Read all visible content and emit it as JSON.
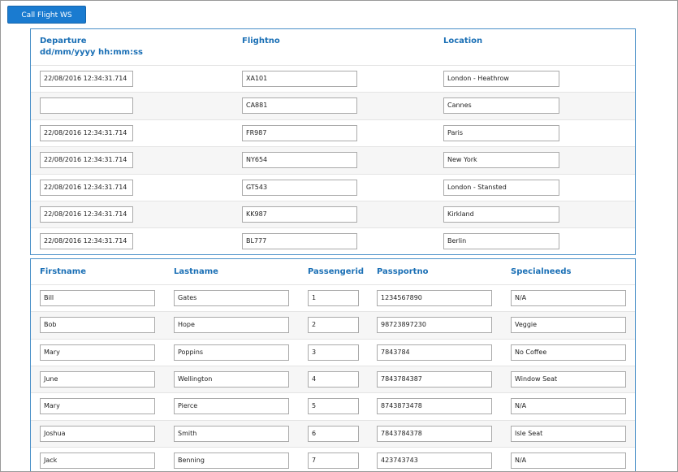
{
  "button": "Call Flight WS",
  "flights": {
    "headers": [
      "Departure\ndd/mm/yyyy hh:mm:ss",
      "Flightno",
      "Location"
    ],
    "rows": [
      [
        "22/08/2016 12:34:31.714",
        "XA101",
        "London - Heathrow"
      ],
      [
        null,
        "CA881",
        "Cannes"
      ],
      [
        "22/08/2016 12:34:31.714",
        "FR987",
        "Paris"
      ],
      [
        "22/08/2016 12:34:31.714",
        "NY654",
        "New York"
      ],
      [
        "22/08/2016 12:34:31.714",
        "GT543",
        "London - Stansted"
      ],
      [
        "22/08/2016 12:34:31.714",
        "KK987",
        "Kirkland"
      ],
      [
        "22/08/2016 12:34:31.714",
        "BL777",
        "Berlin"
      ]
    ]
  },
  "passengers": {
    "headers": [
      "Firstname",
      "Lastname",
      "Passengerid",
      "Passportno",
      "Specialneeds"
    ],
    "rows": [
      [
        "Bill",
        "Gates",
        "1",
        "1234567890",
        "N/A"
      ],
      [
        "Bob",
        "Hope",
        "2",
        "98723897230",
        "Veggie"
      ],
      [
        "Mary",
        "Poppins",
        "3",
        "7843784",
        "No Coffee"
      ],
      [
        "June",
        "Wellington",
        "4",
        "7843784387",
        "Window Seat"
      ],
      [
        "Mary",
        "Pierce",
        "5",
        "8743873478",
        "N/A"
      ],
      [
        "Joshua",
        "Smith",
        "6",
        "7843784378",
        "Isle Seat"
      ],
      [
        "Jack",
        "Benning",
        "7",
        "423743743",
        "N/A"
      ]
    ]
  }
}
